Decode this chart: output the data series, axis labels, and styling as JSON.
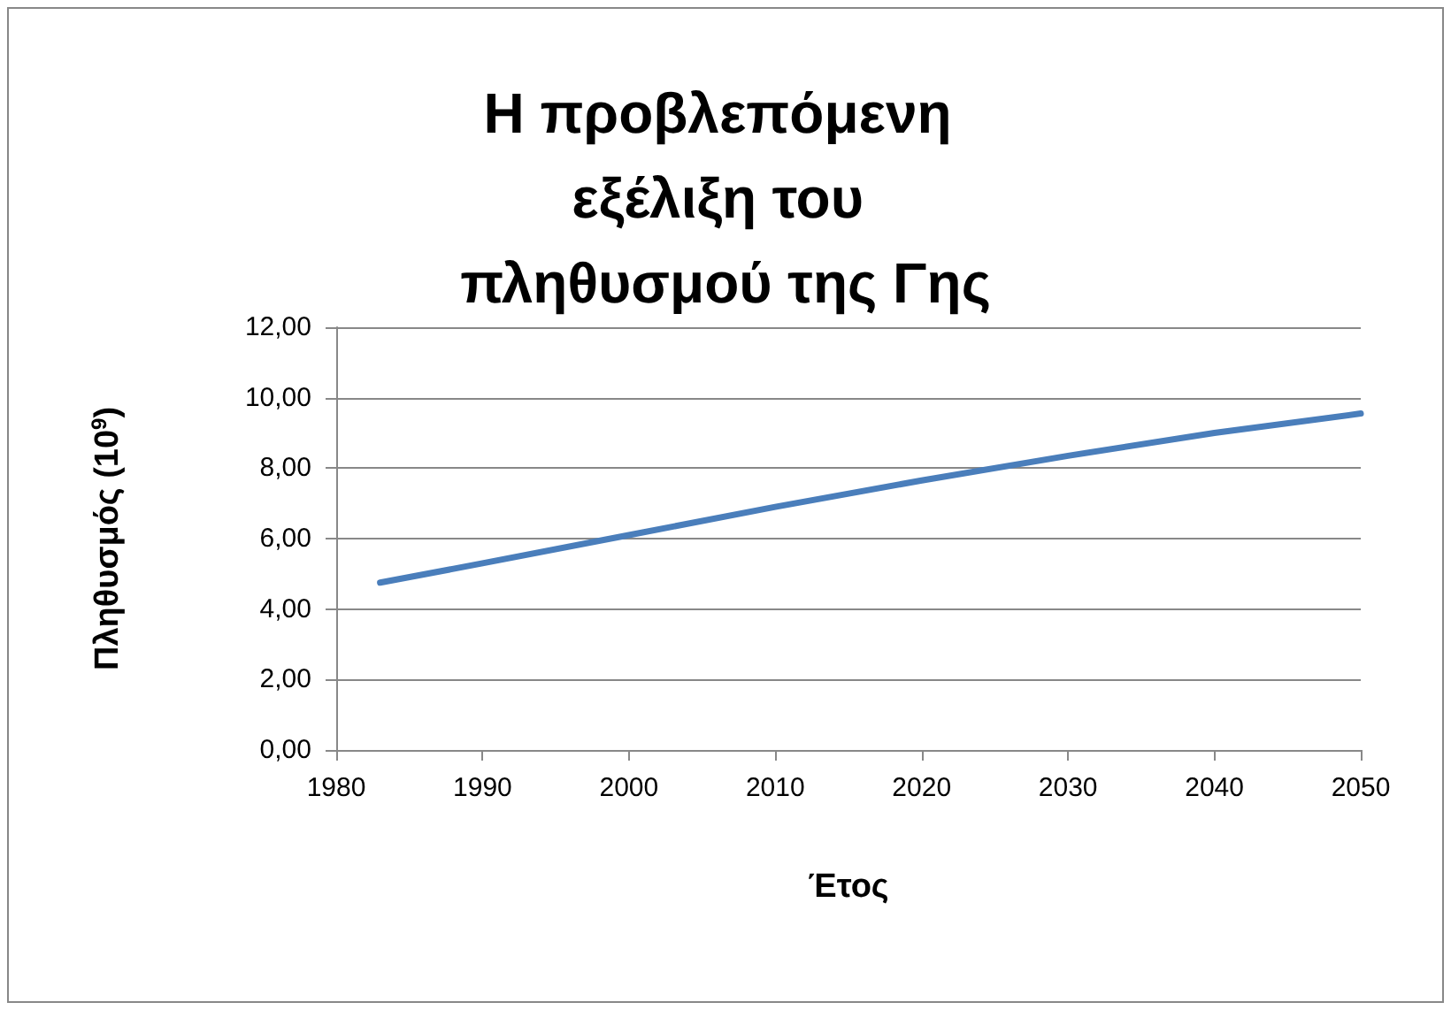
{
  "chart_data": {
    "type": "line",
    "title": "Η προβλεπόμενη εξέλιξη του πληθυσμού της Γης",
    "xlabel": "Έτος",
    "ylabel": "Πληθυσμός (10$^{9}$)",
    "x": [
      1983,
      1990,
      2000,
      2010,
      2020,
      2030,
      2040,
      2050
    ],
    "series": [
      {
        "color": "#4a7ebb",
        "values": [
          4.75,
          5.3,
          6.1,
          6.9,
          7.65,
          8.35,
          9.0,
          9.55
        ]
      }
    ],
    "xlim": [
      1980,
      2050
    ],
    "xticks": [
      1980,
      1990,
      2000,
      2010,
      2020,
      2030,
      2040,
      2050
    ],
    "ylim": [
      0,
      12
    ],
    "yticks": [
      {
        "value": 0,
        "label": "0,00"
      },
      {
        "value": 2,
        "label": "2,00"
      },
      {
        "value": 4,
        "label": "4,00"
      },
      {
        "value": 6,
        "label": "6,00"
      },
      {
        "value": 8,
        "label": "8,00"
      },
      {
        "value": 10,
        "label": "10,00"
      },
      {
        "value": 12,
        "label": "12,00"
      }
    ],
    "grid": "y",
    "marker": "none",
    "line_style": "solid"
  }
}
